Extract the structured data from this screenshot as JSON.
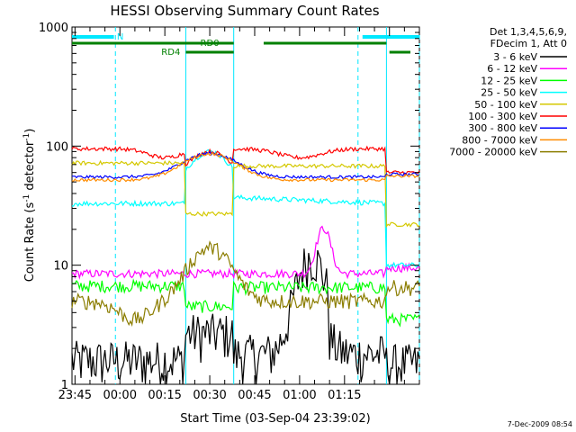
{
  "chart_data": {
    "type": "line",
    "title": "HESSI Observing Summary Count Rates",
    "xlabel": "Start Time (03-Sep-04 23:39:02)",
    "ylabel_main": "Count Rate (s",
    "ylabel_sup1": "-1",
    "ylabel_mid": " detector",
    "ylabel_sup2": "-1",
    "ylabel_end": ")",
    "yscale": "log",
    "ylim": [
      1,
      1000
    ],
    "y_ticks": [
      {
        "value": 1,
        "label": "1"
      },
      {
        "value": 10,
        "label": "10"
      },
      {
        "value": 100,
        "label": "100"
      },
      {
        "value": 1000,
        "label": "1000"
      }
    ],
    "x_range_minutes": [
      -16,
      100
    ],
    "x_ticks": [
      {
        "minute": -15,
        "label": "23:45"
      },
      {
        "minute": 0,
        "label": "00:00"
      },
      {
        "minute": 15,
        "label": "00:15"
      },
      {
        "minute": 30,
        "label": "00:30"
      },
      {
        "minute": 45,
        "label": "00:45"
      },
      {
        "minute": 60,
        "label": "01:00"
      },
      {
        "minute": 75,
        "label": "01:15"
      }
    ],
    "legend_title": [
      "Det 1,3,4,5,6,9,",
      "FDecim 1, Att 0"
    ],
    "legend_position": "right",
    "series": [
      {
        "name": "3 - 6 keV",
        "color": "#000000"
      },
      {
        "name": "6 - 12 keV",
        "color": "#ff00ff"
      },
      {
        "name": "12 - 25 keV",
        "color": "#00ff00"
      },
      {
        "name": "25 - 50 keV",
        "color": "#00ffff"
      },
      {
        "name": "50 - 100 keV",
        "color": "#d4c800"
      },
      {
        "name": "100 - 300 keV",
        "color": "#ff0000"
      },
      {
        "name": "300 - 800 keV",
        "color": "#0000ff"
      },
      {
        "name": "800 - 7000 keV",
        "color": "#ff8c00"
      },
      {
        "name": "7000 - 20000 keV",
        "color": "#8b7d00"
      }
    ],
    "night_bars": [
      [
        -16,
        -2
      ],
      [
        81,
        100
      ]
    ],
    "night_label": "N",
    "night_boundaries": [
      -1.5,
      79.5,
      100
    ],
    "rd_flags": [
      {
        "label": "RD0",
        "segments": [
          [
            -16,
            38
          ],
          [
            48,
            89
          ]
        ]
      },
      {
        "label": "RD4",
        "segments": [
          [
            22,
            38
          ],
          [
            90,
            97
          ]
        ]
      }
    ],
    "segment_boundaries": [
      22,
      38,
      89
    ]
  },
  "footer": {
    "date": "7-Dec-2009 08:54"
  }
}
